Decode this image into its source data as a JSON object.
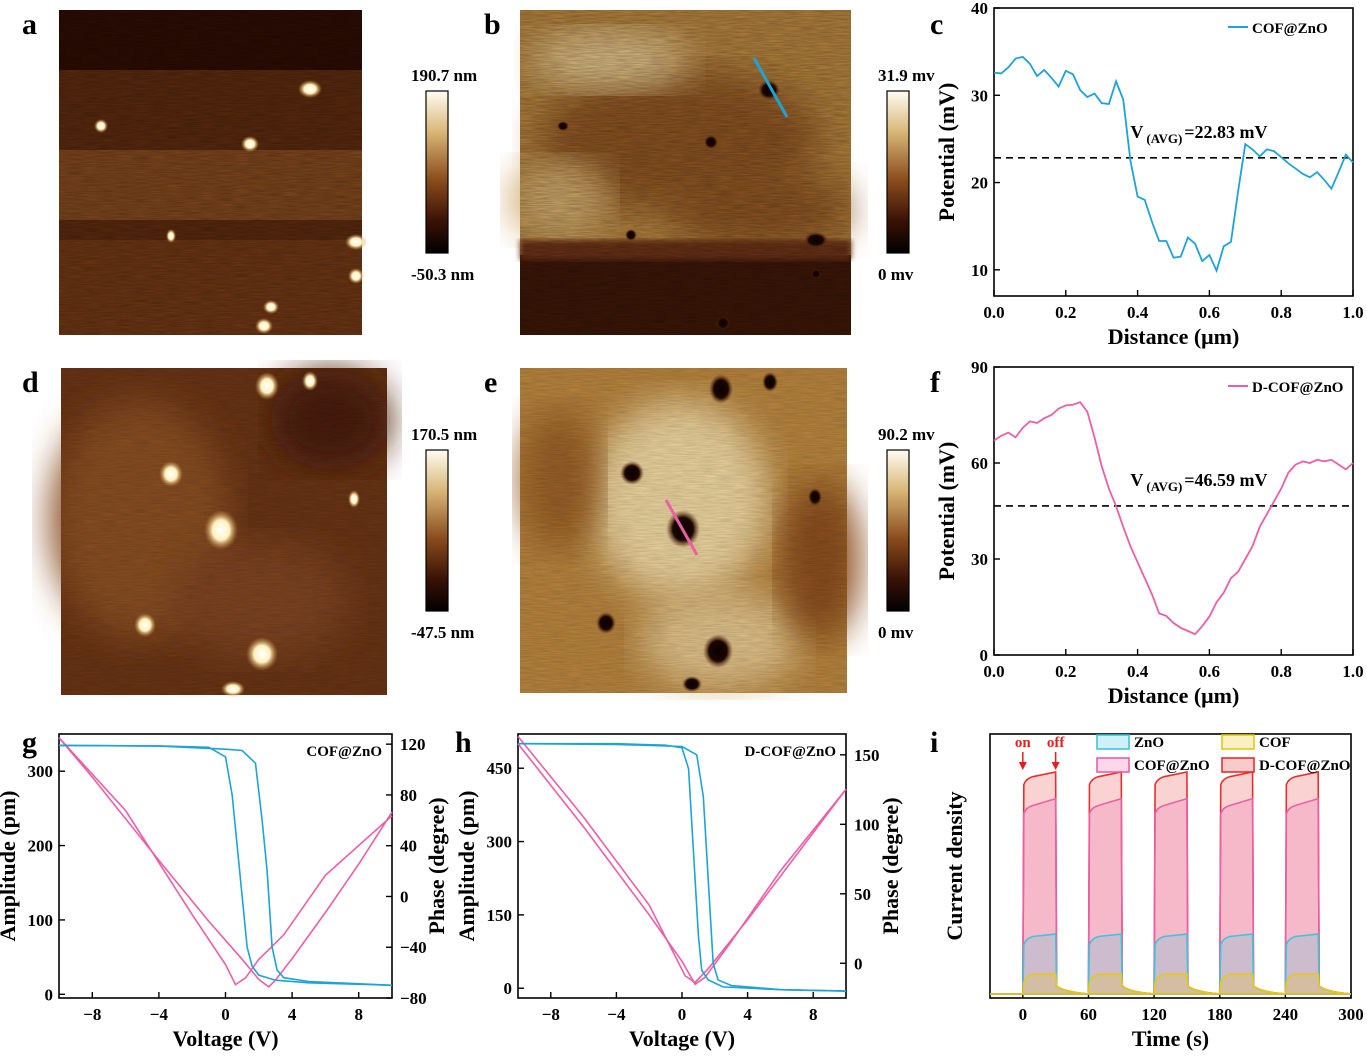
{
  "panels": {
    "a": "a",
    "b": "b",
    "c": "c",
    "d": "d",
    "e": "e",
    "f": "f",
    "g": "g",
    "h": "h",
    "i": "i"
  },
  "colors": {
    "blue": "#1fa3d6",
    "pink": "#ea5fa7",
    "yellow": "#e8c814",
    "red": "#e53030",
    "cyan": "#41c3de",
    "dash": "#000000",
    "onoff": "#e02020"
  },
  "maps": {
    "a": {
      "scale_max": "190.7 nm",
      "scale_min": "-50.3 nm"
    },
    "b": {
      "scale_max": "31.9 mv",
      "scale_min": "0 mv"
    },
    "d": {
      "scale_max": "170.5 nm",
      "scale_min": "-47.5 nm"
    },
    "e": {
      "scale_max": "90.2 mv",
      "scale_min": "0 mv"
    }
  },
  "chart_data": [
    {
      "panel": "c",
      "type": "line",
      "xlabel": "Distance (μm)",
      "ylabel": "Potential (mV)",
      "xlim": [
        0,
        1
      ],
      "ylim": [
        7,
        40
      ],
      "xticks": [
        "0.0",
        "0.2",
        "0.4",
        "0.6",
        "0.8",
        "1.0"
      ],
      "yticks": [
        "10",
        "20",
        "30",
        "40"
      ],
      "legend": "top-right",
      "annotation_main": "V",
      "annotation_sub": "(AVG)",
      "annotation_val": "=22.83 mV",
      "avg": 22.83,
      "series": [
        {
          "name": "COF@ZnO",
          "color": "blue",
          "x": [
            0,
            0.02,
            0.04,
            0.06,
            0.08,
            0.1,
            0.12,
            0.14,
            0.16,
            0.18,
            0.2,
            0.22,
            0.24,
            0.26,
            0.28,
            0.3,
            0.32,
            0.34,
            0.36,
            0.38,
            0.4,
            0.42,
            0.44,
            0.46,
            0.48,
            0.5,
            0.52,
            0.54,
            0.56,
            0.58,
            0.6,
            0.62,
            0.64,
            0.66,
            0.68,
            0.7,
            0.72,
            0.74,
            0.76,
            0.78,
            0.8,
            0.82,
            0.84,
            0.86,
            0.88,
            0.9,
            0.92,
            0.94,
            0.96,
            0.98,
            1.0
          ],
          "y": [
            32.6,
            32.5,
            33.2,
            34.2,
            34.4,
            33.6,
            32.2,
            32.9,
            32.0,
            31.0,
            32.8,
            32.4,
            30.6,
            29.8,
            30.2,
            29.1,
            29.0,
            31.6,
            29.5,
            22.5,
            18.4,
            18.0,
            15.5,
            13.3,
            13.3,
            11.4,
            11.5,
            13.7,
            13.0,
            11.0,
            11.7,
            9.9,
            12.7,
            13.2,
            19.0,
            24.4,
            23.8,
            23.0,
            23.8,
            23.6,
            22.9,
            22.2,
            21.6,
            21.0,
            20.6,
            21.2,
            20.3,
            19.3,
            21.2,
            23.2,
            22.3
          ]
        }
      ]
    },
    {
      "panel": "f",
      "type": "line",
      "xlabel": "Distance (μm)",
      "ylabel": "Potential (mV)",
      "xlim": [
        0,
        1
      ],
      "ylim": [
        0,
        90
      ],
      "xticks": [
        "0.0",
        "0.2",
        "0.4",
        "0.6",
        "0.8",
        "1.0"
      ],
      "yticks": [
        "0",
        "30",
        "60",
        "90"
      ],
      "legend": "top-right",
      "annotation_main": "V",
      "annotation_sub": "(AVG)",
      "annotation_val": "=46.59 mV",
      "avg": 46.59,
      "series": [
        {
          "name": "D-COF@ZnO",
          "color": "pink",
          "x": [
            0,
            0.02,
            0.04,
            0.06,
            0.08,
            0.1,
            0.12,
            0.14,
            0.16,
            0.18,
            0.2,
            0.22,
            0.24,
            0.26,
            0.28,
            0.3,
            0.32,
            0.34,
            0.36,
            0.38,
            0.4,
            0.42,
            0.44,
            0.46,
            0.48,
            0.5,
            0.52,
            0.54,
            0.56,
            0.58,
            0.6,
            0.62,
            0.64,
            0.66,
            0.68,
            0.7,
            0.72,
            0.74,
            0.76,
            0.78,
            0.8,
            0.82,
            0.84,
            0.86,
            0.88,
            0.9,
            0.92,
            0.94,
            0.96,
            0.98,
            1.0
          ],
          "y": [
            67,
            68.5,
            69.5,
            68,
            71,
            73,
            72.5,
            74,
            75,
            77,
            78,
            78.2,
            79,
            76,
            68,
            59,
            52,
            46.5,
            40,
            34,
            29,
            24,
            19,
            13,
            12.2,
            10,
            8.5,
            7.5,
            6.5,
            9,
            12,
            16.5,
            19.5,
            24,
            26,
            30,
            34,
            40,
            44,
            48,
            52,
            57,
            59.5,
            60.5,
            60,
            61,
            60.5,
            61,
            59.5,
            58,
            60
          ]
        }
      ]
    },
    {
      "panel": "g",
      "type": "line",
      "xlabel": "Voltage (V)",
      "ylabel": "Amplitude (pm)",
      "y2label": "Phase (degree)",
      "xlim": [
        -10,
        10
      ],
      "ylim": [
        -5,
        350
      ],
      "y2lim": [
        -80,
        128
      ],
      "xticks": [
        "−8",
        "−4",
        "0",
        "4",
        "8"
      ],
      "yticks": [
        "0",
        "100",
        "200",
        "300"
      ],
      "y2ticks": [
        "−80",
        "−40",
        "0",
        "40",
        "80",
        "120"
      ],
      "legend_label": "COF@ZnO",
      "series": [
        {
          "name": "",
          "axis": "amplitude",
          "color": "pink",
          "x": [
            -10,
            -6,
            -2,
            0,
            0.6,
            1.2,
            2,
            2.6,
            3.5,
            6,
            10
          ],
          "y": [
            345,
            247,
            107,
            40,
            13,
            22,
            47,
            60,
            80,
            160,
            240
          ]
        },
        {
          "name": "",
          "axis": "amplitude",
          "color": "pink",
          "x": [
            -10,
            -8,
            -4,
            -1,
            1,
            2,
            2.6,
            3,
            4,
            6,
            8,
            10
          ],
          "y": [
            345,
            292,
            180,
            98,
            47,
            20,
            10,
            19,
            48,
            110,
            175,
            245
          ]
        },
        {
          "name": "",
          "axis": "phase",
          "color": "blue",
          "x": [
            -10,
            -4,
            -1,
            0,
            0.4,
            0.7,
            1,
            1.3,
            1.6,
            2,
            3,
            5,
            10
          ],
          "y": [
            119,
            118.6,
            117.5,
            110,
            80,
            40,
            0,
            -40,
            -55,
            -62,
            -66,
            -68,
            -70
          ]
        },
        {
          "name": "",
          "axis": "phase",
          "color": "blue",
          "x": [
            -10,
            -4,
            0,
            1,
            1.8,
            2.2,
            2.5,
            2.8,
            3.1,
            3.5,
            5,
            10
          ],
          "y": [
            119,
            118.5,
            116,
            115,
            105,
            60,
            20,
            -40,
            -58,
            -64,
            -67,
            -70
          ]
        }
      ]
    },
    {
      "panel": "h",
      "type": "line",
      "xlabel": "Voltage (V)",
      "ylabel": "Amplitude (pm)",
      "y2label": "Phase (degree)",
      "xlim": [
        -10,
        10
      ],
      "ylim": [
        -20,
        520
      ],
      "y2lim": [
        -25,
        165
      ],
      "xticks": [
        "−8",
        "−4",
        "0",
        "4",
        "8"
      ],
      "yticks": [
        "0",
        "150",
        "300",
        "450"
      ],
      "y2ticks": [
        "0",
        "50",
        "100",
        "150"
      ],
      "legend_label": "D-COF@ZnO",
      "series": [
        {
          "name": "",
          "axis": "amplitude",
          "color": "pink",
          "x": [
            -10,
            -6,
            -2,
            0.2,
            0.8,
            1.6,
            4,
            10
          ],
          "y": [
            515,
            350,
            170,
            25,
            12,
            40,
            140,
            407
          ]
        },
        {
          "name": "",
          "axis": "amplitude",
          "color": "pink",
          "x": [
            -10,
            -6,
            -2,
            0,
            0.8,
            1.4,
            3,
            6,
            10
          ],
          "y": [
            500,
            330,
            150,
            55,
            8,
            22,
            95,
            240,
            407
          ]
        },
        {
          "name": "",
          "axis": "phase",
          "color": "blue",
          "x": [
            -10,
            -4,
            -1,
            0,
            0.4,
            0.8,
            1,
            1.2,
            1.6,
            2.5,
            6,
            10
          ],
          "y": [
            158,
            158,
            157,
            155,
            140,
            60,
            20,
            -5,
            -12,
            -17,
            -19,
            -20
          ]
        },
        {
          "name": "",
          "axis": "phase",
          "color": "blue",
          "x": [
            -10,
            -4,
            0,
            0.9,
            1.3,
            1.6,
            1.9,
            2.2,
            3,
            6,
            10
          ],
          "y": [
            158,
            157.5,
            156,
            150,
            120,
            60,
            0,
            -12,
            -16,
            -19,
            -20
          ]
        }
      ]
    },
    {
      "panel": "i",
      "type": "area",
      "xlabel": "Time (s)",
      "ylabel": "Current density",
      "xlim": [
        -30,
        300
      ],
      "ylim": [
        0,
        1
      ],
      "xticks": [
        "0",
        "60",
        "120",
        "180",
        "240",
        "300"
      ],
      "on_label": "on",
      "off_label": "off",
      "on_times": [
        0,
        60,
        120,
        180,
        240
      ],
      "on_duration": 30,
      "series": [
        {
          "name": "ZnO",
          "color": "cyan",
          "peak": 0.25,
          "tail": 0.27
        },
        {
          "name": "COF",
          "color": "yellow",
          "peak": 0.08,
          "tail": 0.09
        },
        {
          "name": "COF@ZnO",
          "color": "pink",
          "peak": 0.84,
          "tail": 0.88
        },
        {
          "name": "D-COF@ZnO",
          "color": "red",
          "peak": 0.97,
          "tail": 1.0
        }
      ]
    }
  ]
}
